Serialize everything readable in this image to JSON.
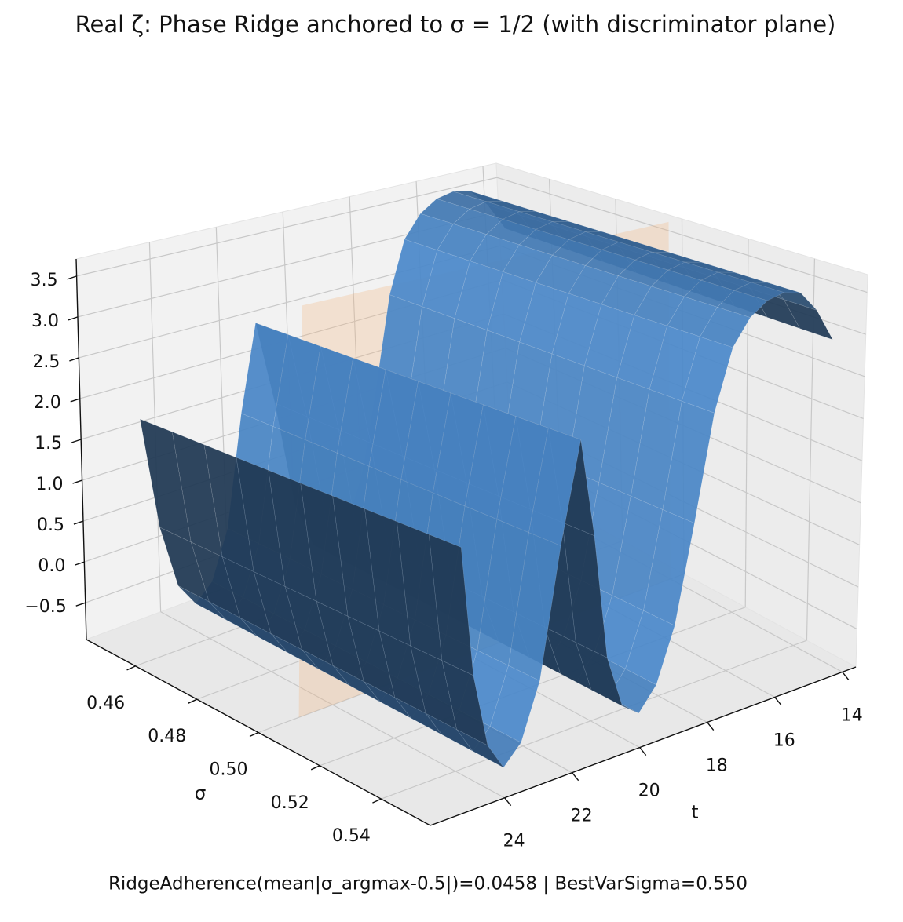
{
  "chart_data": {
    "type": "surface3d",
    "title": "Real ζ: Phase Ridge anchored to σ = 1/2 (with discriminator plane)",
    "footer": "RidgeAdherence(mean|σ_argmax-0.5|)=0.0458 | BestVarSigma=0.550",
    "xlabel": "t",
    "ylabel": "σ",
    "t": [
      14,
      14.5,
      15,
      15.5,
      16,
      16.5,
      17,
      17.5,
      18,
      18.5,
      19,
      19.5,
      20,
      20.5,
      21,
      21.5,
      22,
      22.5,
      23,
      23.5,
      24,
      24.5,
      25
    ],
    "sigma": [
      0.45,
      0.46,
      0.47,
      0.48,
      0.49,
      0.5,
      0.51,
      0.52,
      0.53,
      0.54,
      0.55
    ],
    "z": [
      2.9,
      3.3,
      3.55,
      3.6,
      3.55,
      3.4,
      3.1,
      2.4,
      1.2,
      0.1,
      -0.5,
      -0.75,
      -0.6,
      0.0,
      1.4,
      2.5,
      1.4,
      0.0,
      -0.6,
      -0.8,
      -0.5,
      0.3,
      1.7
    ],
    "color": "#4a86c6",
    "plane": {
      "sigma": 0.5,
      "color": "#f4b27a"
    },
    "xlim": [
      13.6,
      26.2
    ],
    "xticks": [
      14,
      16,
      18,
      20,
      22,
      24
    ],
    "ylim": [
      0.444,
      0.556
    ],
    "yticks": [
      0.46,
      0.48,
      {
        "value": 0.5,
        "label": "0.50"
      },
      0.52,
      0.54
    ],
    "zlim": [
      -0.95,
      3.71
    ],
    "zticks": [
      {
        "value": -0.5,
        "label": "−0.5"
      },
      {
        "value": 0,
        "label": "0.0"
      },
      0.5,
      {
        "value": 1,
        "label": "1.0"
      },
      1.5,
      {
        "value": 2,
        "label": "2.0"
      },
      2.5,
      {
        "value": 3,
        "label": "3.0"
      },
      3.5
    ],
    "grid": true
  }
}
